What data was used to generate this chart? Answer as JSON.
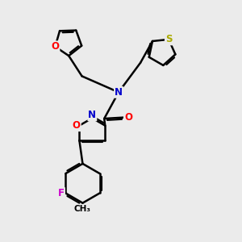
{
  "bg_color": "#ebebeb",
  "bond_color": "#000000",
  "bond_width": 1.8,
  "dbo": 0.07,
  "atom_colors": {
    "O": "#ff0000",
    "N": "#0000cc",
    "S": "#aaaa00",
    "F": "#cc00cc",
    "C": "#000000"
  },
  "afs": 8.5
}
